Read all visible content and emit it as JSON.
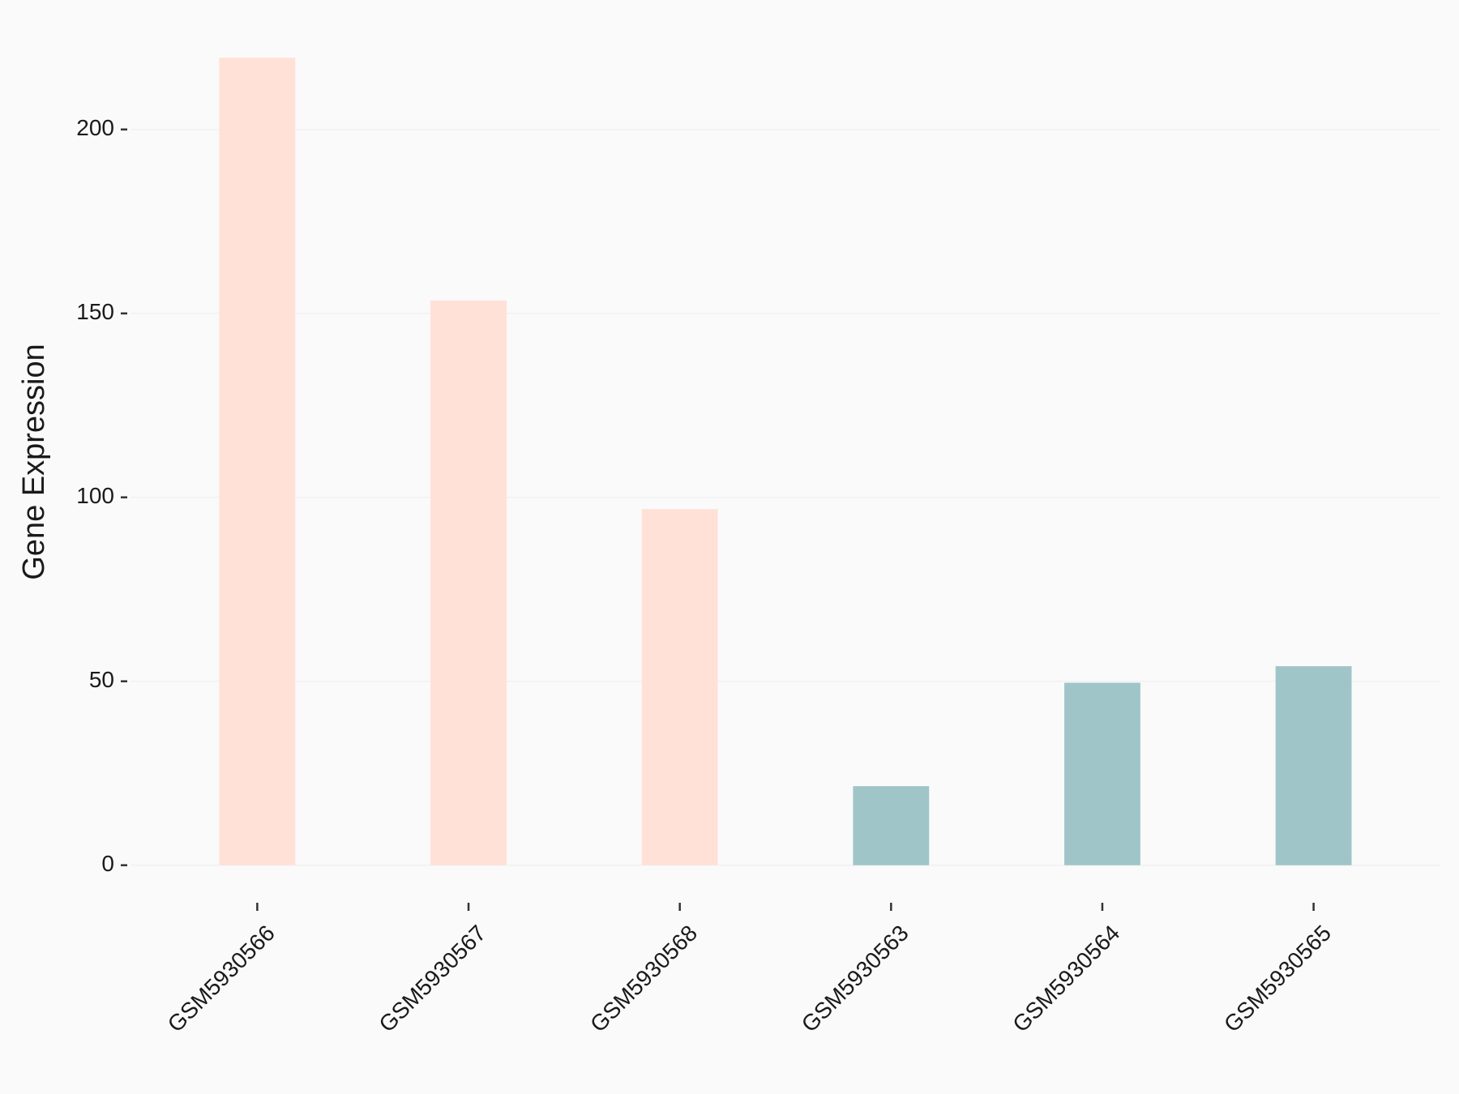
{
  "chart_data": {
    "type": "bar",
    "y_label": "Gene Expression",
    "categories": [
      "GSM5930566",
      "GSM5930567",
      "GSM5930568",
      "GSM5930563",
      "GSM5930564",
      "GSM5930565"
    ],
    "values": [
      219.5,
      153.5,
      96.8,
      21.5,
      49.6,
      54.1
    ],
    "colors": [
      "#ffe1d8",
      "#ffe1d8",
      "#ffe1d8",
      "#9fc5c8",
      "#9fc5c8",
      "#9fc5c8"
    ],
    "ylim": [
      -8,
      225.5
    ],
    "yticks": [
      0,
      50,
      100,
      150,
      200
    ],
    "grid": true
  }
}
